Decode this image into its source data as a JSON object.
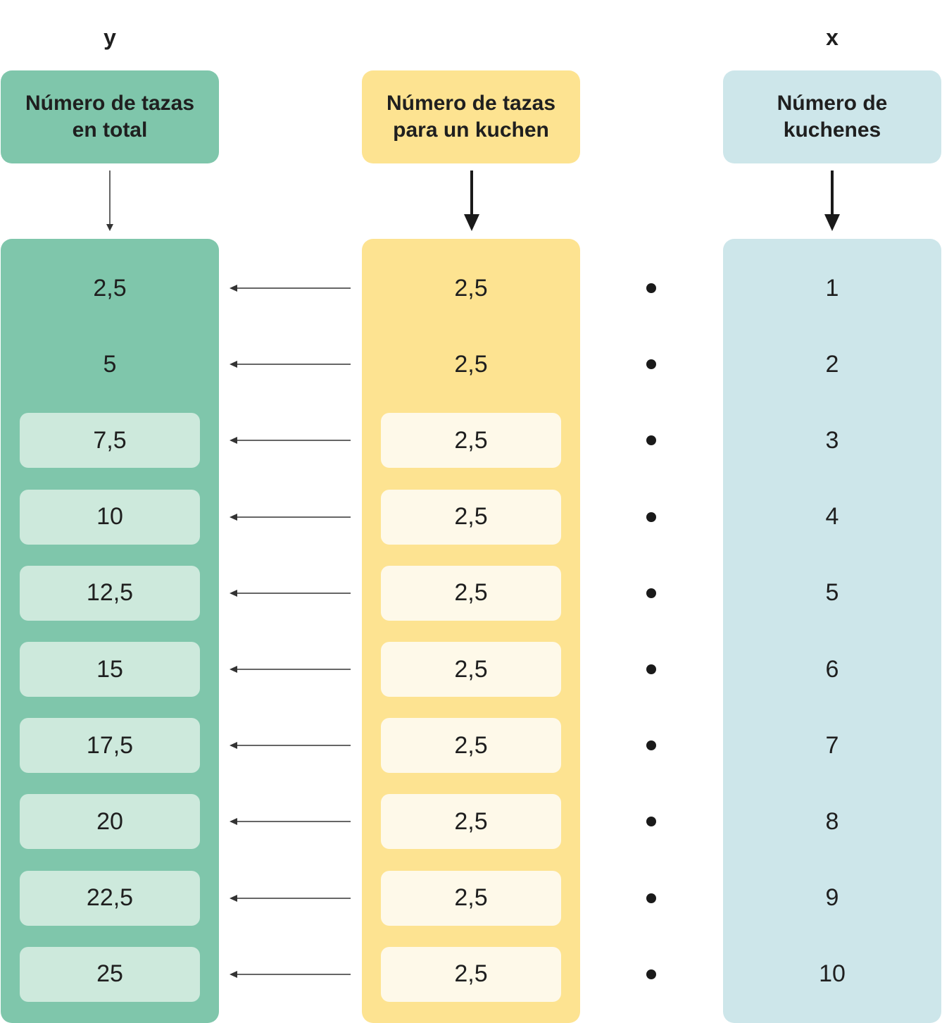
{
  "labels": {
    "y": "y",
    "x": "x"
  },
  "headers": {
    "total": "Número de tazas en total",
    "per_kuchen": "Número de tazas para un kuchen",
    "kuchenes": "Número de kuchenes"
  },
  "rows": [
    {
      "y": "2,5",
      "cups": "2,5",
      "x": "1"
    },
    {
      "y": "5",
      "cups": "2,5",
      "x": "2"
    },
    {
      "y": "7,5",
      "cups": "2,5",
      "x": "3"
    },
    {
      "y": "10",
      "cups": "2,5",
      "x": "4"
    },
    {
      "y": "12,5",
      "cups": "2,5",
      "x": "5"
    },
    {
      "y": "15",
      "cups": "2,5",
      "x": "6"
    },
    {
      "y": "17,5",
      "cups": "2,5",
      "x": "7"
    },
    {
      "y": "20",
      "cups": "2,5",
      "x": "8"
    },
    {
      "y": "22,5",
      "cups": "2,5",
      "x": "9"
    },
    {
      "y": "25",
      "cups": "2,5",
      "x": "10"
    }
  ],
  "colors": {
    "green": "#7fc6ab",
    "green_light": "#cde9dc",
    "yellow": "#fde391",
    "yellow_light": "#fef9e9",
    "blue": "#cde6ea"
  }
}
